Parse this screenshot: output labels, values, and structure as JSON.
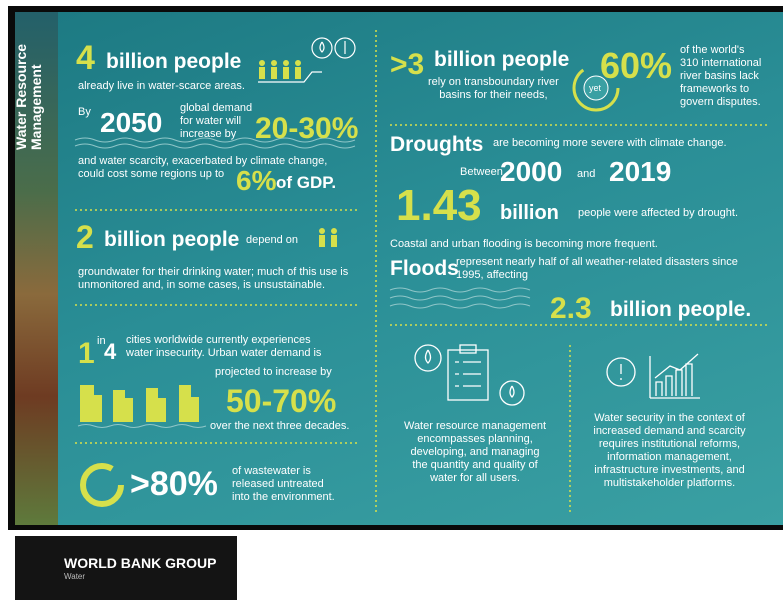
{
  "sidebar": {
    "title": [
      "Water Resource",
      "Management"
    ]
  },
  "left": {
    "scarce": {
      "number": "4",
      "headline": "billion people",
      "text": "already live in water-scarce areas."
    },
    "demand": {
      "by": "By",
      "year": "2050",
      "text": [
        "global demand",
        "for water will",
        "increase by"
      ],
      "range": "20-30%",
      "text2": [
        "and water scarcity, exacerbated by climate change,",
        "could cost some regions up to"
      ],
      "gdp_number": "6%",
      "gdp_text": "of GDP."
    },
    "groundwater": {
      "number": "2",
      "headline": "billion people",
      "depend": "depend on",
      "text": [
        "groundwater for their drinking water; much of this use is",
        "unmonitored and, in some cases, is unsustainable."
      ]
    },
    "cities": {
      "one": "1",
      "in": "in",
      "four": "4",
      "text": [
        "cities worldwide currently experiences",
        "water insecurity. Urban water demand is"
      ],
      "text2": "projected to increase by",
      "range": "50-70%",
      "period": "over the next three decades."
    },
    "wastewater": {
      "number": ">80%",
      "text": [
        "of wastewater is",
        "released untreated",
        "into the environment."
      ]
    }
  },
  "right": {
    "basins": {
      "number": ">3",
      "headline": "billion people",
      "text": [
        "rely on transboundary river",
        "basins for their needs,"
      ],
      "yet": "yet",
      "percent": "60%",
      "text2": [
        "of the world's",
        "310 international",
        "river basins lack",
        "frameworks to",
        "govern disputes."
      ]
    },
    "droughts": {
      "headline": "Droughts",
      "text": "are becoming more severe with climate change.",
      "between": "Between",
      "start": "2000",
      "and": "and",
      "end": "2019",
      "number": "1.43",
      "unit": "billion",
      "text2": "people were affected by drought."
    },
    "floods": {
      "intro": "Coastal and urban flooding is becoming more frequent.",
      "headline": "Floods",
      "text": [
        "represent nearly half of all weather-related disasters since",
        "1995, affecting"
      ],
      "number": "2.3",
      "unit": "billion people."
    },
    "management": {
      "text": [
        "Water resource management",
        "encompasses planning,",
        "developing, and managing",
        "the quantity and quality of",
        "water for all users."
      ]
    },
    "security": {
      "text": [
        "Water security in the context of",
        "increased demand and scarcity",
        "requires institutional reforms,",
        "information management,",
        "infrastructure investments, and",
        "multistakeholder platforms."
      ]
    }
  },
  "footer": {
    "brand": "WORLD BANK GROUP",
    "sub": "Water"
  }
}
